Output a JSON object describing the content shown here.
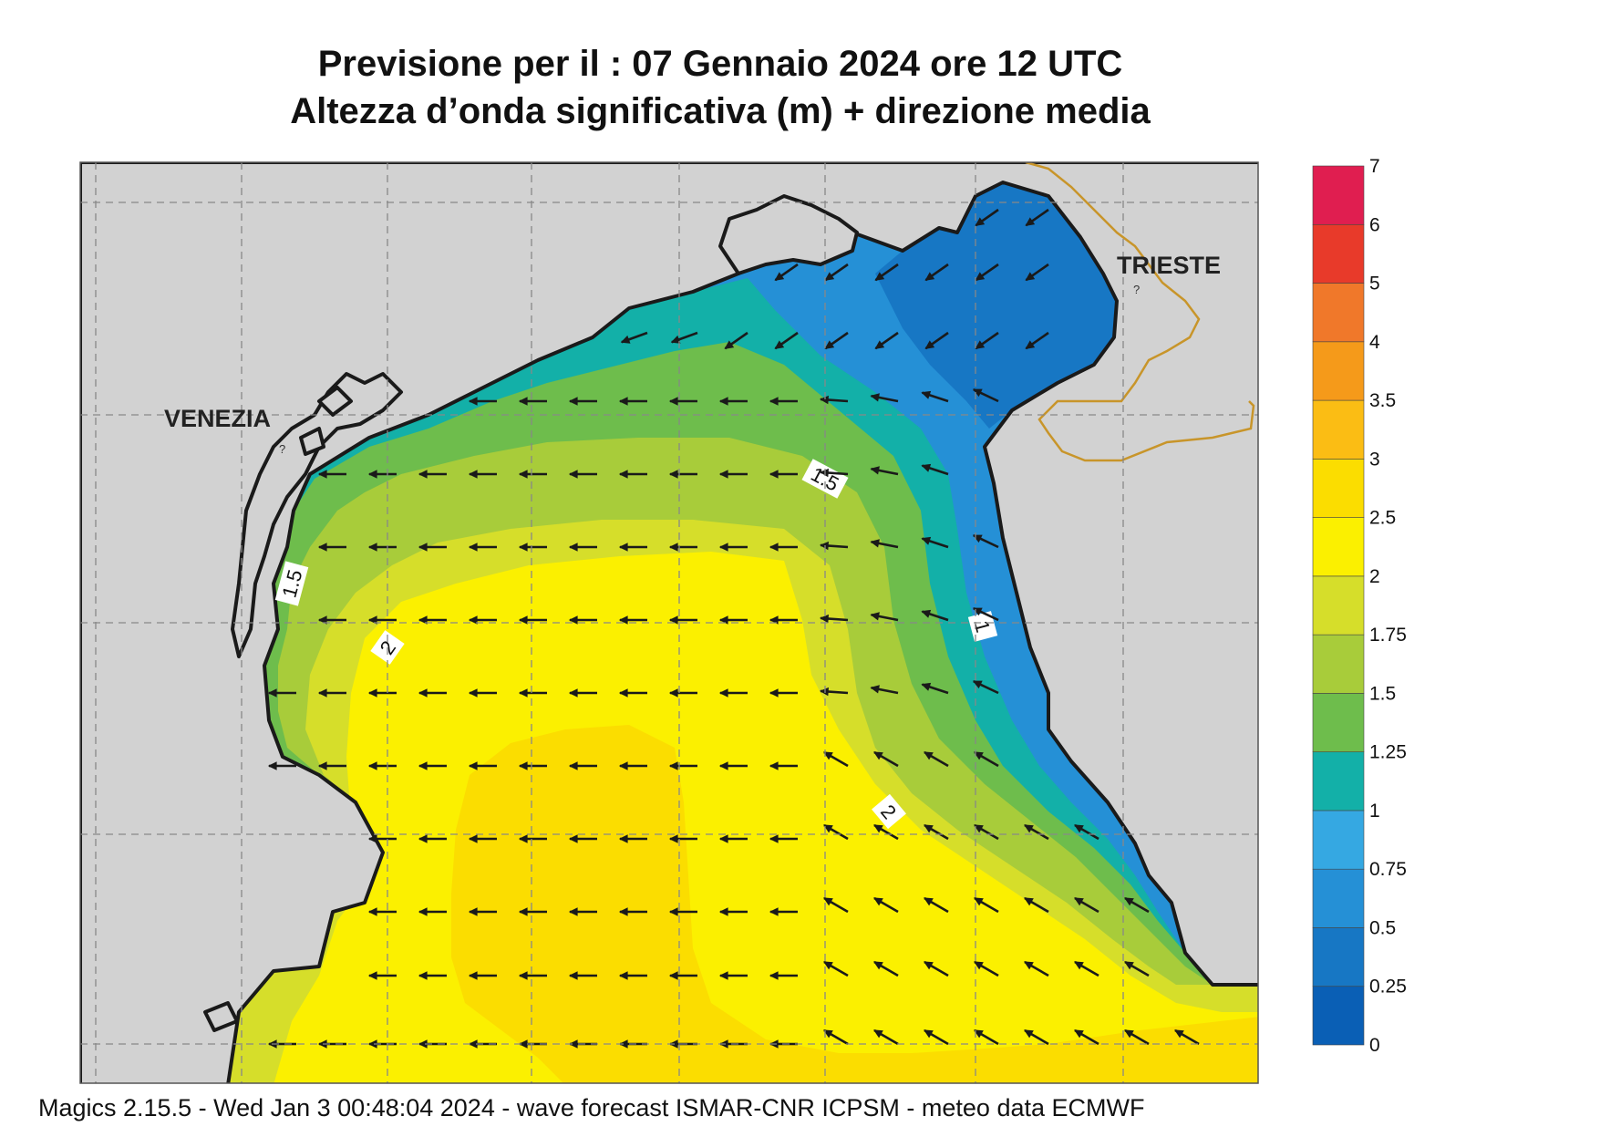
{
  "title": {
    "line1": "Previsione per il  :  07  Gennaio  2024   ore 12 UTC",
    "line2": "Altezza d’onda significativa (m) + direzione media"
  },
  "labels": {
    "venezia": "VENEZIA",
    "trieste": "TRIESTE",
    "marker_q": "?"
  },
  "contour_labels": [
    "1.5",
    "1.5",
    "2",
    "2",
    "1"
  ],
  "colorbar": {
    "ticks": [
      "0",
      "0.25",
      "0.5",
      "0.75",
      "1",
      "1.25",
      "1.5",
      "1.75",
      "2",
      "2.5",
      "3",
      "3.5",
      "4",
      "5",
      "6",
      "7"
    ],
    "colors": [
      "#0a5fb5",
      "#1777c4",
      "#2590d6",
      "#35a8e2",
      "#13b0a8",
      "#6ebd4c",
      "#a8cc3a",
      "#d6de2a",
      "#fbf000",
      "#fbdd00",
      "#fbbd14",
      "#f59a1a",
      "#f0782a",
      "#e83a2a",
      "#e01e50"
    ]
  },
  "footer": "Magics 2.15.5 - Wed Jan  3 00:48:04 2024 - wave forecast  ISMAR-CNR  ICPSM - meteo data    ECMWF"
}
